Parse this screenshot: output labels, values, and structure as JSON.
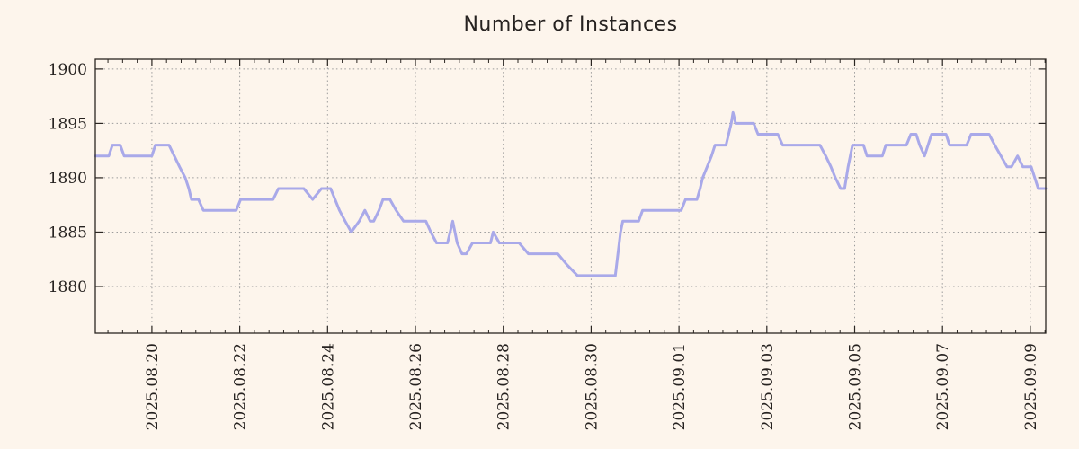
{
  "title": "Number of Instances",
  "colors": {
    "background": "#fdf5ec",
    "line": "#a9a9e9",
    "grid": "#9c9c9c",
    "axis": "#2b2622",
    "text": "#262220"
  },
  "chart_data": {
    "type": "line",
    "title": "Number of Instances",
    "xlabel": "",
    "ylabel": "",
    "grid": true,
    "legend": "none",
    "x_time_origin": "2025.08.18",
    "xlim": [
      0.712,
      22.35
    ],
    "ylim": [
      1875.7,
      1900.9
    ],
    "y_ticks": [
      1880,
      1885,
      1890,
      1895,
      1900
    ],
    "x_minor_step_days": 0.33333,
    "x_ticks": [
      {
        "t": 2,
        "label": "2025.08.20"
      },
      {
        "t": 4,
        "label": "2025.08.22"
      },
      {
        "t": 6,
        "label": "2025.08.24"
      },
      {
        "t": 8,
        "label": "2025.08.26"
      },
      {
        "t": 10,
        "label": "2025.08.28"
      },
      {
        "t": 12,
        "label": "2025.08.30"
      },
      {
        "t": 14,
        "label": "2025.09.01"
      },
      {
        "t": 16,
        "label": "2025.09.03"
      },
      {
        "t": 18,
        "label": "2025.09.05"
      },
      {
        "t": 20,
        "label": "2025.09.07"
      },
      {
        "t": 22,
        "label": "2025.09.09"
      }
    ],
    "series": [
      {
        "points": [
          [
            0.71,
            1892
          ],
          [
            1.02,
            1892
          ],
          [
            1.1,
            1893
          ],
          [
            1.28,
            1893
          ],
          [
            1.37,
            1892
          ],
          [
            2.0,
            1892
          ],
          [
            2.08,
            1893
          ],
          [
            2.39,
            1893
          ],
          [
            2.51,
            1892
          ],
          [
            2.63,
            1891
          ],
          [
            2.76,
            1890
          ],
          [
            2.84,
            1889
          ],
          [
            2.9,
            1888
          ],
          [
            3.06,
            1888
          ],
          [
            3.17,
            1887
          ],
          [
            3.92,
            1887
          ],
          [
            4.02,
            1888
          ],
          [
            4.76,
            1888
          ],
          [
            4.88,
            1889
          ],
          [
            5.46,
            1889
          ],
          [
            5.66,
            1888
          ],
          [
            5.86,
            1889
          ],
          [
            6.07,
            1889
          ],
          [
            6.17,
            1888
          ],
          [
            6.27,
            1887
          ],
          [
            6.4,
            1886
          ],
          [
            6.54,
            1885
          ],
          [
            6.72,
            1886
          ],
          [
            6.85,
            1887
          ],
          [
            6.97,
            1886
          ],
          [
            7.05,
            1886
          ],
          [
            7.17,
            1887
          ],
          [
            7.26,
            1888
          ],
          [
            7.42,
            1888
          ],
          [
            7.56,
            1887
          ],
          [
            7.73,
            1886
          ],
          [
            8.24,
            1886
          ],
          [
            8.35,
            1885
          ],
          [
            8.48,
            1884
          ],
          [
            8.73,
            1884
          ],
          [
            8.85,
            1886
          ],
          [
            8.95,
            1884
          ],
          [
            9.06,
            1883
          ],
          [
            9.16,
            1883
          ],
          [
            9.3,
            1884
          ],
          [
            9.71,
            1884
          ],
          [
            9.77,
            1885
          ],
          [
            9.91,
            1884
          ],
          [
            10.36,
            1884
          ],
          [
            10.57,
            1883
          ],
          [
            11.24,
            1883
          ],
          [
            11.45,
            1882
          ],
          [
            11.69,
            1881
          ],
          [
            12.55,
            1881
          ],
          [
            12.61,
            1883
          ],
          [
            12.67,
            1885
          ],
          [
            12.72,
            1886
          ],
          [
            13.08,
            1886
          ],
          [
            13.17,
            1887
          ],
          [
            14.05,
            1887
          ],
          [
            14.15,
            1888
          ],
          [
            14.41,
            1888
          ],
          [
            14.48,
            1889
          ],
          [
            14.54,
            1890
          ],
          [
            14.64,
            1891
          ],
          [
            14.74,
            1892
          ],
          [
            14.82,
            1893
          ],
          [
            15.07,
            1893
          ],
          [
            15.13,
            1894
          ],
          [
            15.19,
            1895
          ],
          [
            15.23,
            1896
          ],
          [
            15.29,
            1895
          ],
          [
            15.7,
            1895
          ],
          [
            15.8,
            1894
          ],
          [
            16.25,
            1894
          ],
          [
            16.36,
            1893
          ],
          [
            17.21,
            1893
          ],
          [
            17.34,
            1892
          ],
          [
            17.46,
            1891
          ],
          [
            17.56,
            1890
          ],
          [
            17.68,
            1889
          ],
          [
            17.77,
            1889
          ],
          [
            17.85,
            1891
          ],
          [
            17.95,
            1893
          ],
          [
            18.2,
            1893
          ],
          [
            18.28,
            1892
          ],
          [
            18.63,
            1892
          ],
          [
            18.71,
            1893
          ],
          [
            19.18,
            1893
          ],
          [
            19.28,
            1894
          ],
          [
            19.4,
            1894
          ],
          [
            19.48,
            1893
          ],
          [
            19.59,
            1892
          ],
          [
            19.67,
            1893
          ],
          [
            19.75,
            1894
          ],
          [
            20.08,
            1894
          ],
          [
            20.16,
            1893
          ],
          [
            20.55,
            1893
          ],
          [
            20.65,
            1894
          ],
          [
            21.06,
            1894
          ],
          [
            21.19,
            1893
          ],
          [
            21.33,
            1892
          ],
          [
            21.47,
            1891
          ],
          [
            21.57,
            1891
          ],
          [
            21.71,
            1892
          ],
          [
            21.83,
            1891
          ],
          [
            22.02,
            1891
          ],
          [
            22.1,
            1890
          ],
          [
            22.18,
            1889
          ],
          [
            22.35,
            1889
          ]
        ]
      }
    ]
  }
}
